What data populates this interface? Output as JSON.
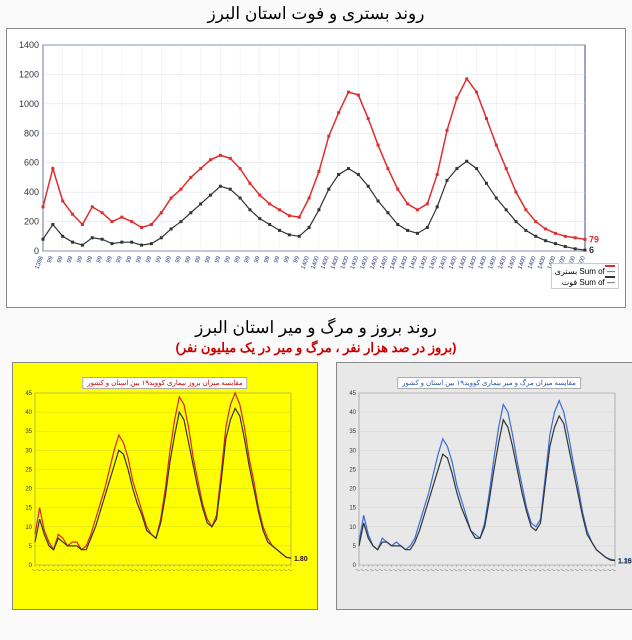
{
  "titles": {
    "top": "روند بستری و فوت استان البرز",
    "bottom_main": "روند بروز و مرگ و میر استان البرز",
    "bottom_sub": "(بروز در صد هزار نفر ، مرگ و میر در یک میلیون نفر)"
  },
  "top_chart": {
    "type": "line",
    "background_color": "#ffffff",
    "grid_color": "#d8dce0",
    "plot_border": "#3a4a8a",
    "y_left": {
      "min": 0,
      "max": 1400,
      "step": 200,
      "label_color": "#333",
      "fontsize": 9
    },
    "y_right": {
      "min": 0,
      "max": 600,
      "step": 100
    },
    "series": [
      {
        "name": "بستری",
        "legend": "— Sum of بستری",
        "color": "#e02d2d",
        "marker": "square",
        "marker_size": 3,
        "line_width": 1.5,
        "end_value": 79,
        "data": [
          300,
          560,
          340,
          250,
          180,
          300,
          260,
          200,
          230,
          200,
          160,
          180,
          260,
          360,
          420,
          500,
          560,
          620,
          650,
          630,
          560,
          460,
          380,
          320,
          280,
          240,
          230,
          360,
          540,
          780,
          940,
          1080,
          1060,
          900,
          720,
          560,
          420,
          320,
          280,
          320,
          520,
          820,
          1040,
          1170,
          1080,
          900,
          720,
          560,
          400,
          280,
          200,
          150,
          120,
          100,
          90,
          79
        ]
      },
      {
        "name": "فوت",
        "legend": "— Sum of فوت",
        "color": "#333333",
        "marker": "square",
        "marker_size": 3,
        "line_width": 1.2,
        "end_value": 6,
        "data": [
          80,
          180,
          100,
          60,
          40,
          90,
          80,
          50,
          60,
          60,
          40,
          50,
          90,
          150,
          200,
          260,
          320,
          380,
          440,
          420,
          360,
          280,
          220,
          180,
          140,
          110,
          100,
          160,
          280,
          420,
          520,
          560,
          520,
          440,
          340,
          260,
          180,
          140,
          120,
          160,
          300,
          480,
          560,
          610,
          560,
          460,
          360,
          280,
          200,
          140,
          100,
          70,
          50,
          30,
          15,
          6
        ]
      }
    ],
    "x_labels": [
      "1398",
      "99",
      "99",
      "99",
      "99",
      "99",
      "99",
      "99",
      "99",
      "99",
      "99",
      "99",
      "99",
      "99",
      "99",
      "99",
      "99",
      "99",
      "99",
      "99",
      "99",
      "99",
      "99",
      "99",
      "99",
      "99",
      "99",
      "1400",
      "1400",
      "1400",
      "1400",
      "1400",
      "1400",
      "1400",
      "1400",
      "1400",
      "1400",
      "1400",
      "1400",
      "1400",
      "1400",
      "1400",
      "1400",
      "1400",
      "1400",
      "1400",
      "1400",
      "1400",
      "1400",
      "1400",
      "1400",
      "1400",
      "1400",
      "1400",
      "1400",
      "1400"
    ],
    "x_label_fontsize": 6,
    "x_label_angle": -70,
    "x_label_color": "#2b3a7a",
    "end_label_colors": {
      "79": "#e02d2d",
      "6": "#333333"
    }
  },
  "bottom_left": {
    "type": "line",
    "background_color": "#ffff00",
    "grid_color": "#cccc33",
    "legend_text": "مقایسه میزان بروز بیماری کووید۱۹ بین استان و کشور",
    "y": {
      "min": 0,
      "max": 45,
      "step": 5
    },
    "series": [
      {
        "name": "استان",
        "color": "#d92525",
        "line_width": 1.2,
        "end_value": 1.8,
        "data": [
          8,
          15,
          9,
          6,
          4,
          8,
          7,
          5,
          6,
          6,
          4,
          5,
          8,
          12,
          16,
          20,
          25,
          30,
          34,
          32,
          28,
          22,
          18,
          14,
          10,
          8,
          7,
          12,
          20,
          30,
          38,
          44,
          42,
          36,
          28,
          22,
          16,
          12,
          10,
          13,
          24,
          36,
          42,
          45,
          42,
          36,
          28,
          22,
          15,
          10,
          7,
          5,
          4,
          3,
          2,
          1.8
        ]
      },
      {
        "name": "کشور",
        "color": "#333333",
        "line_width": 1.2,
        "end_value": 1.8,
        "data": [
          6,
          12,
          8,
          5,
          4,
          7,
          6,
          5,
          5,
          5,
          4,
          4,
          7,
          10,
          14,
          18,
          22,
          26,
          30,
          29,
          25,
          20,
          16,
          13,
          9,
          8,
          7,
          11,
          18,
          27,
          34,
          40,
          38,
          32,
          26,
          20,
          15,
          11,
          10,
          12,
          22,
          33,
          38,
          41,
          39,
          33,
          26,
          20,
          14,
          9,
          6,
          5,
          4,
          3,
          2,
          1.8
        ]
      }
    ],
    "end_label_color": "#d92525"
  },
  "bottom_right": {
    "type": "line",
    "background_color": "#e8e8e8",
    "grid_color": "#cccccc",
    "legend_text": "مقایسه میزان مرگ و میر بیماری کووید۱۹ بین استان و کشور",
    "y": {
      "min": 0,
      "max": 45,
      "step": 5
    },
    "series": [
      {
        "name": "استان",
        "color": "#3a6cd6",
        "line_width": 1.2,
        "end_value": 1.3,
        "data": [
          6,
          13,
          8,
          5,
          4,
          7,
          6,
          5,
          6,
          5,
          4,
          5,
          7,
          11,
          15,
          19,
          24,
          29,
          33,
          31,
          27,
          21,
          17,
          13,
          9,
          8,
          7,
          11,
          19,
          28,
          36,
          42,
          40,
          34,
          27,
          21,
          15,
          11,
          10,
          12,
          23,
          34,
          40,
          43,
          40,
          34,
          27,
          21,
          14,
          9,
          6,
          4,
          3,
          2,
          1.5,
          1.3
        ]
      },
      {
        "name": "کشور",
        "color": "#333333",
        "line_width": 1.2,
        "end_value": 1.15,
        "data": [
          5,
          11,
          7,
          5,
          4,
          6,
          6,
          5,
          5,
          5,
          4,
          4,
          6,
          9,
          13,
          17,
          21,
          25,
          29,
          28,
          24,
          19,
          15,
          12,
          9,
          7,
          7,
          10,
          17,
          25,
          32,
          38,
          36,
          31,
          25,
          19,
          14,
          10,
          9,
          11,
          21,
          31,
          36,
          39,
          37,
          31,
          25,
          19,
          13,
          8,
          6,
          4,
          3,
          2,
          1.3,
          1.15
        ]
      }
    ],
    "end_label_colors": {
      "1.30": "#3a6cd6",
      "1.15": "#333333"
    }
  }
}
